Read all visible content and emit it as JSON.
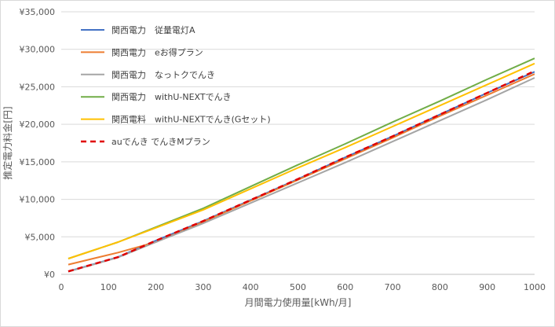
{
  "chart_data": {
    "type": "line",
    "xlabel": "月間電力使用量[kWh/月]",
    "ylabel": "推定電力料金[円]",
    "xlim": [
      0,
      1000
    ],
    "ylim": [
      0,
      35000
    ],
    "x_ticks": [
      "0",
      "100",
      "200",
      "300",
      "400",
      "500",
      "600",
      "700",
      "800",
      "900",
      "1000"
    ],
    "y_ticks": [
      "¥0",
      "¥5,000",
      "¥10,000",
      "¥15,000",
      "¥20,000",
      "¥25,000",
      "¥30,000",
      "¥35,000"
    ],
    "grid": "horizontal",
    "legend_position": "top-left",
    "series": [
      {
        "name": "関西電力　従量電灯A",
        "color": "#4472C4",
        "dash": "solid",
        "x": [
          15,
          120,
          200,
          300,
          400,
          500,
          600,
          700,
          800,
          900,
          1000
        ],
        "y": [
          400,
          2300,
          4500,
          7100,
          9900,
          12700,
          15600,
          18400,
          21300,
          24200,
          27000
        ]
      },
      {
        "name": "関西電力　eお得プラン",
        "color": "#ED7D31",
        "dash": "solid",
        "x": [
          15,
          120,
          200,
          300,
          400,
          500,
          600,
          700,
          800,
          900,
          1000
        ],
        "y": [
          1300,
          2900,
          4300,
          7000,
          9800,
          12600,
          15400,
          18200,
          21100,
          23900,
          26700
        ]
      },
      {
        "name": "関西電力　なっトクでんき",
        "color": "#A5A5A5",
        "dash": "solid",
        "x": [
          15,
          120,
          200,
          300,
          400,
          500,
          600,
          700,
          800,
          900,
          1000
        ],
        "y": [
          350,
          2250,
          4300,
          6800,
          9500,
          12200,
          14900,
          17700,
          20500,
          23300,
          26200
        ]
      },
      {
        "name": "関西電力　withU-NEXTでんき",
        "color": "#70AD47",
        "dash": "solid",
        "x": [
          15,
          120,
          200,
          300,
          400,
          500,
          600,
          700,
          800,
          900,
          1000
        ],
        "y": [
          2100,
          4300,
          6300,
          8800,
          11700,
          14600,
          17400,
          20300,
          23100,
          26000,
          28800
        ]
      },
      {
        "name": "関西電料　withU-NEXTでんき(Gセット)",
        "color": "#FFC000",
        "dash": "solid",
        "x": [
          15,
          120,
          200,
          300,
          400,
          500,
          600,
          700,
          800,
          900,
          1000
        ],
        "y": [
          2100,
          4300,
          6200,
          8600,
          11400,
          14200,
          16900,
          19700,
          22500,
          25300,
          28100
        ]
      },
      {
        "name": "auでんき でんきMプラン",
        "color": "#E00000",
        "dash": "dashed",
        "x": [
          15,
          120,
          200,
          300,
          400,
          500,
          600,
          700,
          800,
          900,
          1000
        ],
        "y": [
          400,
          2300,
          4500,
          7100,
          9900,
          12700,
          15600,
          18400,
          21300,
          24200,
          27100
        ]
      }
    ]
  }
}
